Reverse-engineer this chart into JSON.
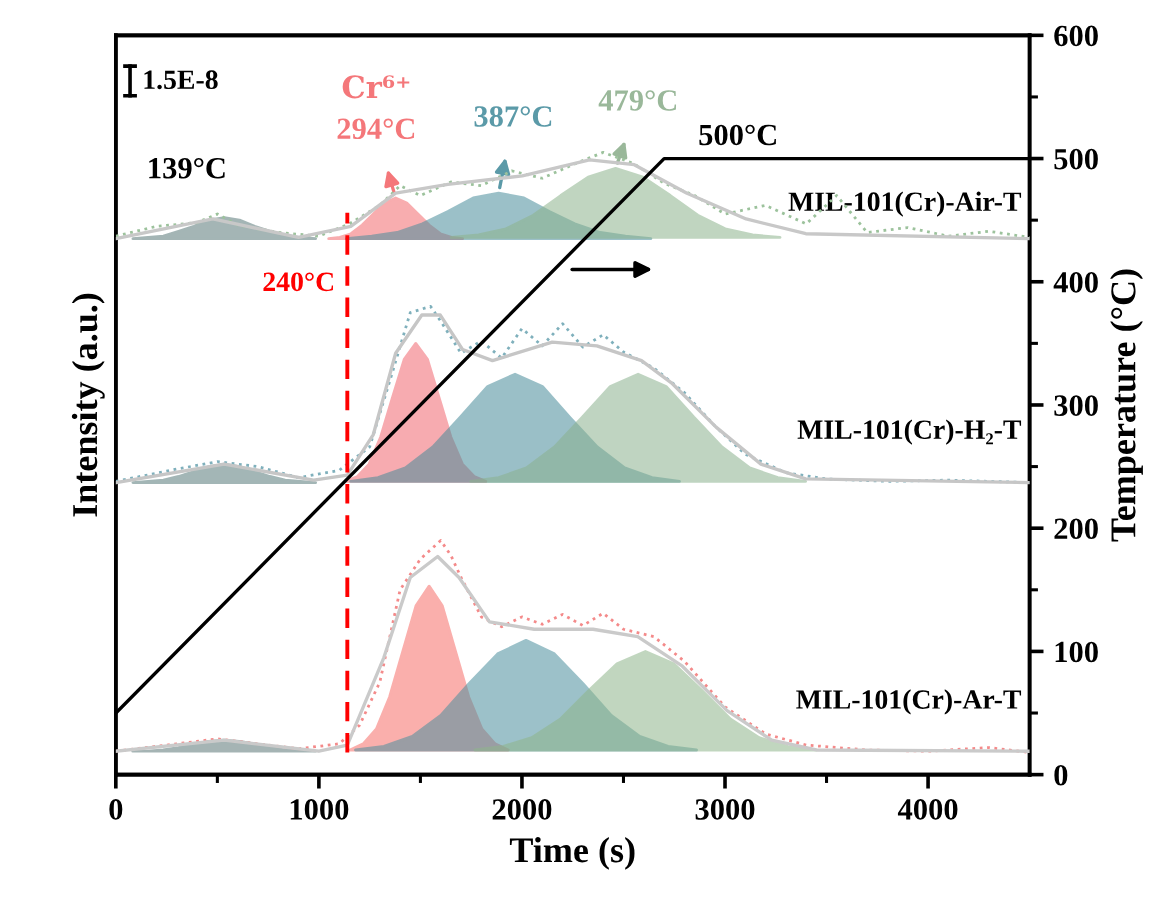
{
  "chart_data": {
    "type": "line",
    "xlabel": "Time (s)",
    "ylabel": "Intensity (a.u.)",
    "y2label": "Temperature (°C)",
    "xlim": [
      0,
      4500
    ],
    "xticks": [
      0,
      {
        "value": 500,
        "label": null
      },
      1000,
      {
        "value": 1500,
        "label": null
      },
      2000,
      {
        "value": 2500,
        "label": null
      },
      3000,
      {
        "value": 3500,
        "label": null
      },
      4000
    ],
    "y2lim": [
      0,
      600
    ],
    "y2ticks": [
      0,
      {
        "value": 50,
        "label": null
      },
      100,
      {
        "value": 150,
        "label": null
      },
      200,
      {
        "value": 250,
        "label": null
      },
      300,
      {
        "value": 350,
        "label": null
      },
      400,
      {
        "value": 450,
        "label": null
      },
      500,
      {
        "value": 550,
        "label": null
      },
      600
    ],
    "grid": false,
    "legend": false,
    "ref_lines": [
      {
        "axis": "x",
        "value": 1140,
        "label": "240°C",
        "color": "#ff0000",
        "line_style": "dashed"
      }
    ],
    "annotations": [
      "1.5E-8",
      "139°C",
      "Cr⁶⁺",
      "294°C",
      "387°C",
      "479°C",
      "500°C",
      "MIL-101(Cr)-Air-T",
      "MIL-101(Cr)-H₂-T",
      "MIL-101(Cr)-Ar-T"
    ],
    "series": [
      {
        "type": "area",
        "axis": "y2",
        "color": "#5a7a7a",
        "x": [
          84,
          159,
          234,
          309,
          384,
          459,
          534,
          609,
          684,
          759,
          834,
          909,
          984
        ],
        "values": [
          435,
          436,
          437,
          441,
          445,
          450,
          452,
          450,
          445,
          441,
          437,
          436,
          435
        ]
      },
      {
        "type": "area",
        "axis": "y2",
        "color": "#f46b6e",
        "x": [
          1048,
          1103,
          1158,
          1213,
          1268,
          1323,
          1378,
          1433,
          1488,
          1543,
          1598,
          1653,
          1708
        ],
        "values": [
          435,
          436,
          439,
          446,
          455,
          464,
          468,
          464,
          455,
          446,
          439,
          436,
          435
        ]
      },
      {
        "type": "area",
        "axis": "y2",
        "color": "#4a8e9c",
        "x": [
          1135,
          1260,
          1385,
          1510,
          1635,
          1760,
          1885,
          2010,
          2135,
          2260,
          2385,
          2510,
          2635
        ],
        "values": [
          435,
          437,
          440,
          447,
          457,
          468,
          472,
          468,
          457,
          447,
          440,
          437,
          435
        ]
      },
      {
        "type": "area",
        "axis": "y2",
        "color": "#8db48d",
        "x": [
          1651,
          1786,
          1921,
          2056,
          2191,
          2326,
          2461,
          2596,
          2731,
          2866,
          3001,
          3136,
          3271
        ],
        "values": [
          436,
          438,
          443,
          454,
          470,
          485,
          492,
          485,
          470,
          454,
          443,
          438,
          436
        ]
      },
      {
        "type": "line",
        "axis": "y2",
        "color": "#9cc29c",
        "line_style": "dotted",
        "x": [
          0,
          200,
          400,
          500,
          600,
          800,
          1000,
          1150,
          1300,
          1400,
          1500,
          1650,
          1800,
          1950,
          2100,
          2250,
          2400,
          2550,
          2700,
          2850,
          3000,
          3200,
          3400,
          3550,
          3700,
          3900,
          4100,
          4300,
          4500
        ],
        "values": [
          437,
          445,
          448,
          455,
          446,
          440,
          437,
          447,
          462,
          478,
          470,
          481,
          478,
          490,
          484,
          495,
          505,
          496,
          480,
          470,
          455,
          462,
          447,
          470,
          440,
          444,
          437,
          441,
          436
        ]
      },
      {
        "type": "line",
        "axis": "y2",
        "color": "#c8c8c8",
        "x": [
          0,
          478,
          900,
          1157,
          1378,
          1635,
          2002,
          2333,
          2553,
          2810,
          3104,
          3398,
          4500
        ],
        "values": [
          435,
          451,
          436,
          445,
          472,
          479,
          486,
          499,
          495,
          472,
          451,
          439,
          435
        ]
      },
      {
        "type": "area",
        "axis": "y2",
        "color": "#587c7c",
        "x": [
          84,
          159,
          234,
          309,
          384,
          459,
          534,
          609,
          684,
          759,
          834,
          909,
          984
        ],
        "values": [
          237,
          238,
          239,
          242,
          246,
          250,
          252,
          250,
          246,
          242,
          239,
          238,
          237
        ]
      },
      {
        "type": "area",
        "axis": "y2",
        "color": "#f26870",
        "x": [
          1132,
          1190,
          1247,
          1304,
          1362,
          1420,
          1477,
          1535,
          1592,
          1650,
          1707,
          1765,
          1822
        ],
        "values": [
          238,
          242,
          252,
          274,
          306,
          337,
          350,
          337,
          306,
          274,
          252,
          242,
          238
        ]
      },
      {
        "type": "area",
        "axis": "y2",
        "color": "#488c9a",
        "x": [
          1156,
          1291,
          1426,
          1561,
          1696,
          1831,
          1966,
          2101,
          2236,
          2371,
          2506,
          2641,
          2776
        ],
        "values": [
          238,
          241,
          249,
          266,
          290,
          315,
          325,
          315,
          290,
          266,
          249,
          241,
          238
        ]
      },
      {
        "type": "area",
        "axis": "y2",
        "color": "#8bb28f",
        "x": [
          1747,
          1885,
          2022,
          2160,
          2297,
          2435,
          2572,
          2710,
          2847,
          2985,
          3122,
          3260,
          3397
        ],
        "values": [
          238,
          241,
          249,
          266,
          290,
          315,
          325,
          315,
          290,
          266,
          249,
          241,
          238
        ]
      },
      {
        "type": "line",
        "axis": "y2",
        "color": "#7fb0bc",
        "line_style": "dotted",
        "x": [
          0,
          300,
          500,
          700,
          900,
          1100,
          1250,
          1350,
          1450,
          1550,
          1600,
          1700,
          1800,
          1900,
          2000,
          2100,
          2200,
          2300,
          2400,
          2500,
          2650,
          2800,
          2950,
          3100,
          3300,
          3500,
          3800,
          4100,
          4500
        ],
        "values": [
          238,
          248,
          254,
          250,
          241,
          247,
          266,
          320,
          375,
          380,
          368,
          342,
          352,
          338,
          362,
          348,
          366,
          347,
          357,
          343,
          330,
          310,
          283,
          260,
          245,
          240,
          238,
          239,
          237
        ]
      },
      {
        "type": "line",
        "axis": "y2",
        "color": "#c6c6c6",
        "x": [
          0,
          533,
          974,
          1140,
          1268,
          1378,
          1507,
          1598,
          1708,
          1855,
          2149,
          2369,
          2589,
          2736,
          2956,
          3177,
          3397,
          4500
        ],
        "values": [
          237,
          252,
          239,
          243,
          276,
          342,
          373,
          373,
          345,
          336,
          351,
          348,
          336,
          318,
          282,
          252,
          240,
          237
        ]
      },
      {
        "type": "area",
        "axis": "y2",
        "color": "#5c7878",
        "x": [
          83,
          158,
          233,
          308,
          383,
          458,
          533,
          608,
          683,
          758,
          833,
          908,
          983
        ],
        "values": [
          19,
          19,
          20,
          22,
          25,
          27,
          28,
          27,
          25,
          22,
          20,
          19,
          19
        ]
      },
      {
        "type": "area",
        "axis": "y2",
        "color": "#f66e6a",
        "x": [
          1153,
          1218,
          1283,
          1348,
          1413,
          1478,
          1543,
          1608,
          1673,
          1738,
          1803,
          1868,
          1933
        ],
        "values": [
          20,
          25,
          37,
          63,
          100,
          137,
          153,
          137,
          100,
          63,
          37,
          25,
          20
        ]
      },
      {
        "type": "area",
        "axis": "y2",
        "color": "#4c909e",
        "x": [
          1180,
          1320,
          1460,
          1600,
          1740,
          1880,
          2020,
          2160,
          2300,
          2440,
          2580,
          2720,
          2860
        ],
        "values": [
          20,
          23,
          31,
          48,
          74,
          98,
          109,
          98,
          74,
          48,
          31,
          23,
          20
        ]
      },
      {
        "type": "area",
        "axis": "y2",
        "color": "#8fb68b",
        "x": [
          1768,
          1908,
          2048,
          2188,
          2328,
          2468,
          2608,
          2748,
          2888,
          3028,
          3168,
          3308,
          3448
        ],
        "values": [
          20,
          23,
          30,
          45,
          68,
          90,
          100,
          90,
          68,
          45,
          30,
          23,
          20
        ]
      },
      {
        "type": "line",
        "axis": "y2",
        "color": "#f48a8a",
        "line_style": "dotted",
        "x": [
          0,
          300,
          500,
          700,
          900,
          1100,
          1200,
          1300,
          1400,
          1500,
          1600,
          1650,
          1700,
          1800,
          1900,
          2000,
          2100,
          2200,
          2300,
          2400,
          2500,
          2650,
          2800,
          3000,
          3200,
          3400,
          3700,
          4000,
          4300,
          4500
        ],
        "values": [
          19,
          25,
          29,
          25,
          21,
          25,
          40,
          75,
          150,
          175,
          190,
          178,
          160,
          128,
          120,
          128,
          122,
          130,
          121,
          131,
          118,
          112,
          92,
          55,
          33,
          24,
          20,
          19,
          22,
          18
        ]
      },
      {
        "type": "line",
        "axis": "y2",
        "color": "#cacaca",
        "x": [
          0,
          533,
          1000,
          1140,
          1320,
          1450,
          1585,
          1690,
          1840,
          2060,
          2350,
          2570,
          2790,
          3010,
          3230,
          3450,
          4500
        ],
        "values": [
          19,
          28,
          19,
          24,
          95,
          160,
          177,
          160,
          124,
          118,
          118,
          112,
          88,
          52,
          28,
          20,
          19
        ]
      },
      {
        "axis": "y2",
        "color": "#000000",
        "x": [
          0,
          2700,
          4500
        ],
        "values": [
          50,
          500,
          500
        ]
      }
    ]
  }
}
